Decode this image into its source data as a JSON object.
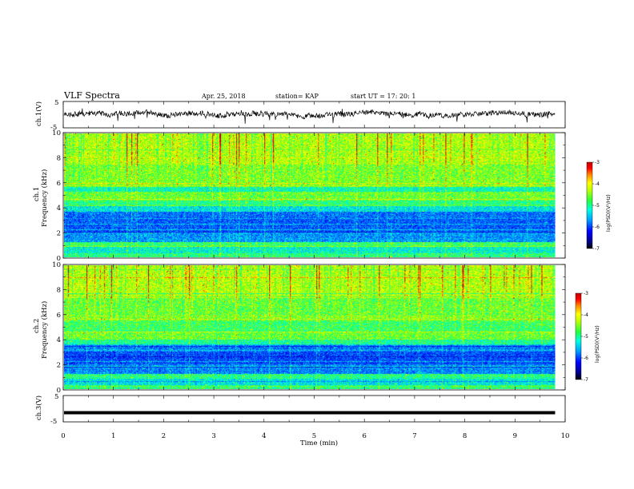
{
  "header": {
    "title": "VLF Spectra",
    "date": "Apr. 25, 2018",
    "station": "station= KAP",
    "start_ut": "start  UT  =   17: 20: 1"
  },
  "colors": {
    "palette": [
      "#00008c",
      "#0000ff",
      "#0070ff",
      "#00c8ff",
      "#00ffd0",
      "#30ff60",
      "#b0ff00",
      "#ffff00",
      "#ffb000",
      "#ff5000",
      "#d00000",
      "#b00000"
    ]
  },
  "chart_data": [
    {
      "type": "line",
      "id": "ch1-waveform",
      "ylabel": "ch.1(V)",
      "ylim": [
        -5,
        5
      ],
      "xlim": [
        0,
        10
      ],
      "yticks": [
        "5",
        "-5"
      ],
      "series": [
        {
          "style": "noisy trace",
          "mean": 0,
          "amplitude": 1.5
        }
      ],
      "x_extent": [
        0,
        9.8
      ]
    },
    {
      "type": "heatmap",
      "id": "ch1-spectrogram",
      "ylabel_top": "ch.1",
      "ylabel": "Frequency (kHz)",
      "ylim": [
        0,
        10
      ],
      "xlim": [
        0,
        10
      ],
      "x_extent": [
        0,
        9.8
      ],
      "yticks": [
        "0",
        "2",
        "4",
        "6",
        "8",
        "10"
      ],
      "colorbar": {
        "label": "log(PSD)(V²/Hz)",
        "range": [
          -7,
          -3
        ],
        "ticks": [
          "-3",
          "-4",
          "-5",
          "-6",
          "-7"
        ]
      },
      "bands": [
        {
          "f": [
            0.0,
            0.3
          ],
          "level": -4.9
        },
        {
          "f": [
            0.3,
            0.8
          ],
          "level": -5.2
        },
        {
          "f": [
            0.8,
            1.2
          ],
          "level": -4.8
        },
        {
          "f": [
            1.2,
            2.0
          ],
          "level": -5.7
        },
        {
          "f": [
            2.0,
            3.0
          ],
          "level": -6.0
        },
        {
          "f": [
            3.0,
            3.7
          ],
          "level": -5.9
        },
        {
          "f": [
            3.7,
            4.1
          ],
          "level": -5.3
        },
        {
          "f": [
            4.1,
            4.6
          ],
          "level": -4.9
        },
        {
          "f": [
            4.6,
            5.3
          ],
          "level": -4.6
        },
        {
          "f": [
            5.3,
            5.7
          ],
          "level": -5.1
        },
        {
          "f": [
            5.7,
            7.5
          ],
          "level": -4.5
        },
        {
          "f": [
            7.5,
            10.0
          ],
          "level": -4.3
        }
      ]
    },
    {
      "type": "heatmap",
      "id": "ch2-spectrogram",
      "ylabel_top": "ch.2",
      "ylabel": "Frequency (kHz)",
      "ylim": [
        0,
        10
      ],
      "xlim": [
        0,
        10
      ],
      "x_extent": [
        0,
        9.8
      ],
      "yticks": [
        "0",
        "2",
        "4",
        "6",
        "8",
        "10"
      ],
      "colorbar": {
        "label": "log(PSD)(V²/Hz)",
        "range": [
          -7,
          -3
        ],
        "ticks": [
          "-3",
          "-4",
          "-5",
          "-6",
          "-7"
        ]
      },
      "bands": [
        {
          "f": [
            0.0,
            0.3
          ],
          "level": -4.9
        },
        {
          "f": [
            0.3,
            0.8
          ],
          "level": -5.3
        },
        {
          "f": [
            0.8,
            1.2
          ],
          "level": -4.9
        },
        {
          "f": [
            1.2,
            2.0
          ],
          "level": -5.8
        },
        {
          "f": [
            2.0,
            3.0
          ],
          "level": -6.1
        },
        {
          "f": [
            3.0,
            3.6
          ],
          "level": -5.8
        },
        {
          "f": [
            3.6,
            4.0
          ],
          "level": -5.0
        },
        {
          "f": [
            4.0,
            4.6
          ],
          "level": -4.6
        },
        {
          "f": [
            4.6,
            5.5
          ],
          "level": -4.8
        },
        {
          "f": [
            5.5,
            7.5
          ],
          "level": -4.6
        },
        {
          "f": [
            7.5,
            10.0
          ],
          "level": -4.3
        }
      ]
    },
    {
      "type": "line",
      "id": "ch3-waveform",
      "ylabel": "ch.3(V)",
      "ylim": [
        -5,
        5
      ],
      "xlim": [
        0,
        10
      ],
      "yticks": [
        "5",
        "-5"
      ],
      "series": [
        {
          "style": "flat",
          "value": -1.5
        }
      ],
      "x_extent": [
        0,
        9.8
      ],
      "xlabel": "Time  (min)",
      "xticks": [
        "0",
        "1",
        "2",
        "3",
        "4",
        "5",
        "6",
        "7",
        "8",
        "9",
        "10"
      ]
    }
  ]
}
